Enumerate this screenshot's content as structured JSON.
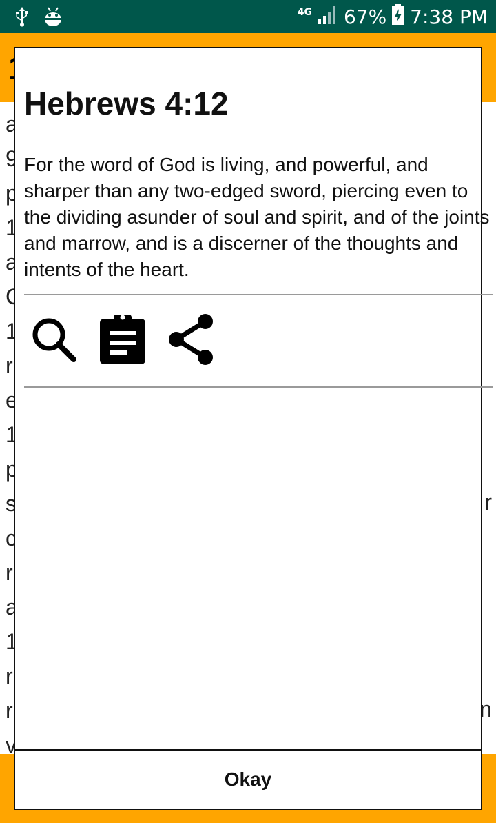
{
  "status_bar": {
    "usb_icon": "usb-icon",
    "debug_icon": "android-debug-icon",
    "network_type": "4G",
    "battery_percent": "67%",
    "time": "7:38 PM",
    "bg_color": "#00574b"
  },
  "background": {
    "header_glyph": "1",
    "header_color": "#ffa500",
    "lines": [
      "a",
      "9",
      "p",
      "1",
      "a",
      "C",
      "1",
      "r",
      "e",
      "1",
      "p",
      "s",
      "c",
      "r",
      "a",
      "1",
      "r",
      "r",
      "v"
    ],
    "right_chars": [
      "r",
      "n"
    ]
  },
  "dialog": {
    "title": "Hebrews 4:12",
    "verse": "For the word of God is living, and powerful, and sharper than any two-edged sword, piercing even to the dividing asunder of soul and spirit, and of the joints and marrow, and is a discerner of the thoughts and intents of the heart.",
    "actions": [
      {
        "icon": "search-icon"
      },
      {
        "icon": "clipboard-icon"
      },
      {
        "icon": "share-icon"
      }
    ],
    "okay_label": "Okay"
  }
}
